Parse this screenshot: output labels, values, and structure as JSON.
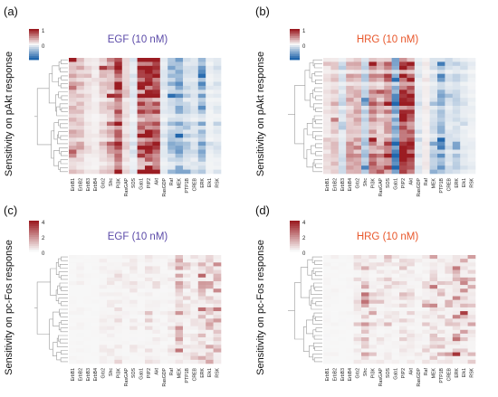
{
  "chart_data": [
    {
      "type": "heatmap",
      "panel": "(a)",
      "title": "EGF (10 nM)",
      "title_color": "#5b4aa8",
      "ylabel": "Sensitivity on pAkt response",
      "colorbar": {
        "ticks": [
          "1",
          "0",
          ""
        ],
        "range": [
          -1,
          1
        ],
        "low": "#2166ac",
        "mid": "#f7f7f7",
        "high": "#9b1c22"
      },
      "columns": [
        "ErbB1",
        "ErbB2",
        "ErbB3",
        "ErbB4",
        "Grb2",
        "Shc",
        "PI3K",
        "RasGAP",
        "SOS",
        "Gab1",
        "PIP2",
        "Akt",
        "RasGDP",
        "Raf",
        "MEK",
        "PTP1B",
        "CREB",
        "ERK",
        "Elk1",
        "RSK"
      ],
      "rows": 29,
      "column_profile": [
        0.3,
        0.25,
        0.1,
        0.05,
        0.2,
        0.3,
        0.85,
        0.15,
        -0.1,
        0.8,
        0.95,
        0.9,
        -0.1,
        -0.3,
        -0.45,
        -0.2,
        -0.15,
        -0.4,
        -0.05,
        -0.1
      ]
    },
    {
      "type": "heatmap",
      "panel": "(b)",
      "title": "HRG (10 nM)",
      "title_color": "#e8562a",
      "ylabel": "Sensitivity on pAkt response",
      "colorbar": {
        "ticks": [
          "1",
          "0",
          ""
        ],
        "range": [
          -1,
          1
        ],
        "low": "#2166ac",
        "mid": "#f7f7f7",
        "high": "#9b1c22"
      },
      "columns": [
        "ErbB1",
        "ErbB2",
        "ErbB3",
        "ErbB4",
        "Grb2",
        "Shc",
        "PI3K",
        "RasGAP",
        "SOS",
        "Gab1",
        "PIP2",
        "Akt",
        "RasGDP",
        "Raf",
        "MEK",
        "PTP1B",
        "CREB",
        "ERK",
        "Elk1",
        "RSK"
      ],
      "rows": 29,
      "column_profile": [
        0.1,
        0.2,
        -0.15,
        0.3,
        0.35,
        -0.3,
        0.45,
        0.3,
        0.5,
        -0.7,
        0.95,
        0.9,
        -0.1,
        0.05,
        -0.2,
        -0.5,
        -0.15,
        -0.2,
        -0.1,
        -0.05
      ]
    },
    {
      "type": "heatmap",
      "panel": "(c)",
      "title": "EGF (10 nM)",
      "title_color": "#5b4aa8",
      "ylabel": "Sensitivity on pc-Fos response",
      "colorbar": {
        "ticks": [
          "4",
          "2",
          "0"
        ],
        "range": [
          0,
          4
        ],
        "low": "#f7f7f7",
        "high": "#9b1c22"
      },
      "columns": [
        "ErbB1",
        "ErbB2",
        "ErbB3",
        "ErbB4",
        "Grb2",
        "Shc",
        "PI3K",
        "RasGAP",
        "SOS",
        "Gab1",
        "PIP2",
        "Akt",
        "RasGDP",
        "Raf",
        "MEK",
        "PTP1B",
        "CREB",
        "ERK",
        "Elk1",
        "RSK"
      ],
      "rows": 29,
      "column_profile": [
        0.05,
        0.05,
        0.02,
        0.02,
        0.2,
        0.3,
        0.4,
        0.15,
        0.3,
        0.1,
        0.35,
        0.3,
        0.1,
        0.3,
        1.6,
        0.4,
        0.5,
        1.9,
        1.1,
        1.3
      ]
    },
    {
      "type": "heatmap",
      "panel": "(d)",
      "title": "HRG (10 nM)",
      "title_color": "#e8562a",
      "ylabel": "Sensitivity on pc-Fos response",
      "colorbar": {
        "ticks": [
          "4",
          "2",
          "0"
        ],
        "range": [
          0,
          4
        ],
        "low": "#f7f7f7",
        "high": "#9b1c22"
      },
      "columns": [
        "ErbB1",
        "ErbB2",
        "ErbB3",
        "ErbB4",
        "Grb2",
        "Shc",
        "PI3K",
        "RasGAP",
        "SOS",
        "Gab1",
        "PIP2",
        "Akt",
        "RasGDP",
        "Raf",
        "MEK",
        "PTP1B",
        "CREB",
        "ERK",
        "Elk1",
        "RSK"
      ],
      "rows": 29,
      "column_profile": [
        0.05,
        0.05,
        0.02,
        0.05,
        0.5,
        1.6,
        0.6,
        0.5,
        1.0,
        0.3,
        0.6,
        0.4,
        0.2,
        0.6,
        1.5,
        0.7,
        0.9,
        2.0,
        1.6,
        1.2
      ]
    }
  ]
}
